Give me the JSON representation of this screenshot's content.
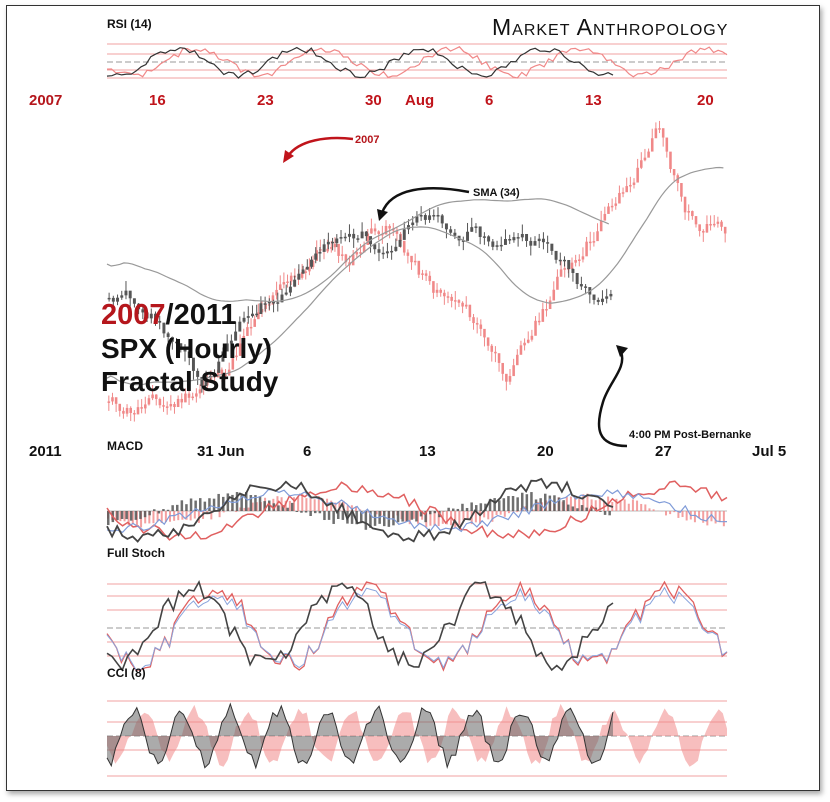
{
  "brand": "Market Anthropology",
  "chart_data": {
    "type": "line",
    "title": "2007/2011 SPX (Hourly) Fractal Study",
    "title_parts": {
      "year_2007": "2007",
      "year_2011": "/2011",
      "line2": "SPX (Hourly)",
      "line3": "Fractal Study"
    },
    "colors": {
      "series_2007": "#f08888",
      "series_2011": "#555555",
      "accent_red": "#c0141b"
    },
    "top_axis": {
      "year": "2007",
      "ticks": [
        "16",
        "23",
        "30",
        "Aug",
        "6",
        "13",
        "20"
      ]
    },
    "bottom_axis": {
      "year": "2011",
      "ticks": [
        "31 Jun",
        "6",
        "13",
        "20",
        "27",
        "Jul  5"
      ]
    },
    "annotations": {
      "label_2007": "2007",
      "sma": "SMA (34)",
      "post_bernanke": "4:00 PM Post-Bernanke"
    },
    "panels": {
      "rsi": {
        "label": "RSI (14)"
      },
      "macd": {
        "label": "MACD"
      },
      "stoch": {
        "label": "Full Stoch"
      },
      "cci": {
        "label": "CCI (8)"
      }
    },
    "series": [
      {
        "name": "2007",
        "y": [
          0.06,
          0.05,
          0.04,
          0.06,
          0.05,
          0.06,
          0.1,
          0.12,
          0.15,
          0.2,
          0.28,
          0.34,
          0.4,
          0.45,
          0.5,
          0.55,
          0.6,
          0.58,
          0.55,
          0.62,
          0.68,
          0.66,
          0.6,
          0.52,
          0.46,
          0.42,
          0.4,
          0.36,
          0.3,
          0.22,
          0.15,
          0.25,
          0.34,
          0.44,
          0.52,
          0.58,
          0.64,
          0.7,
          0.76,
          0.82,
          0.92,
          1.0,
          0.86,
          0.74,
          0.68,
          0.7,
          0.66
        ]
      },
      {
        "name": "2011",
        "y": [
          0.57,
          0.6,
          0.57,
          0.5,
          0.4,
          0.3,
          0.22,
          0.3,
          0.42,
          0.52,
          0.58,
          0.62,
          0.7,
          0.77,
          0.82,
          0.85,
          0.88,
          0.84,
          0.82,
          0.9,
          0.94,
          0.93,
          0.86,
          0.88,
          0.85,
          0.82,
          0.88,
          0.86,
          0.82,
          0.74,
          0.66,
          0.62,
          0.63
        ]
      }
    ]
  }
}
